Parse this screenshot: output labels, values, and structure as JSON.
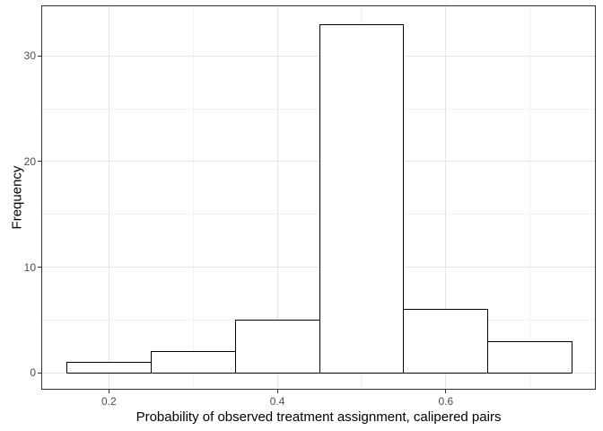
{
  "figure": {
    "background": "#ffffff"
  },
  "chart_data": {
    "type": "bar",
    "subtype": "histogram",
    "title": "",
    "xlabel": "Probability of observed treatment assignment, calipered pairs",
    "ylabel": "Frequency",
    "bins": {
      "edges": [
        0.15,
        0.25,
        0.35,
        0.45,
        0.55,
        0.65,
        0.75
      ],
      "centers": [
        0.2,
        0.3,
        0.4,
        0.5,
        0.6,
        0.7
      ],
      "counts": [
        1,
        2,
        5,
        33,
        6,
        3
      ]
    },
    "x_axis": {
      "ticks": [
        {
          "value": 0.2,
          "label": "0.2"
        },
        {
          "value": 0.4,
          "label": "0.4"
        },
        {
          "value": 0.6,
          "label": "0.6"
        }
      ],
      "minor_ticks": [
        0.3,
        0.5,
        0.7
      ],
      "range": [
        0.1208,
        0.777
      ]
    },
    "y_axis": {
      "ticks": [
        {
          "value": 0,
          "label": "0"
        },
        {
          "value": 10,
          "label": "10"
        },
        {
          "value": 20,
          "label": "20"
        },
        {
          "value": 30,
          "label": "30"
        }
      ],
      "minor_ticks": [
        5,
        15,
        25
      ],
      "range": [
        -1.5,
        34.7
      ]
    },
    "grid": true,
    "legend": false,
    "colors": {
      "bar_fill": "#ffffff",
      "bar_stroke": "#000000",
      "panel_border": "#333333",
      "grid_major": "#e4e4e4",
      "grid_minor": "#f1f1f1",
      "axis_tick": "#333333",
      "tick_label": "#4d4d4d",
      "axis_title": "#000000",
      "background": "#ffffff"
    }
  }
}
